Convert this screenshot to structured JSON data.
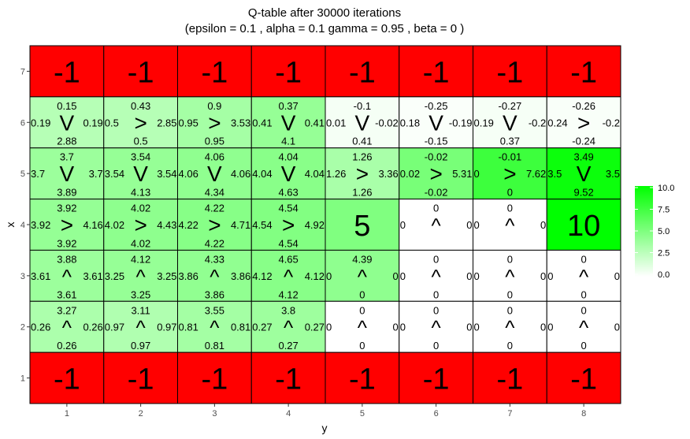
{
  "chart_data": {
    "type": "heatmap",
    "title": "Q-table after  30000  iterations",
    "subtitle": "(epsilon =  0.1 , alpha =  0.1 gamma =  0.95 , beta =  0 )",
    "xlabel": "y",
    "ylabel": "x",
    "x_ticks": [
      "1",
      "2",
      "3",
      "4",
      "5",
      "6",
      "7",
      "8"
    ],
    "y_ticks": [
      "1",
      "2",
      "3",
      "4",
      "5",
      "6",
      "7"
    ],
    "x_range": [
      0.5,
      8.5
    ],
    "y_range": [
      0.5,
      7.5
    ],
    "grid": true,
    "legend": {
      "position": "right",
      "ticks": [
        "0.0",
        "2.5",
        "5.0",
        "7.5",
        "10.0"
      ],
      "min": 0,
      "max": 10,
      "low_color": "#ffffff",
      "high_color": "#00ff00"
    },
    "colors": {
      "penalty": "#ff0000",
      "panel_background": "#ebebeb",
      "grid": "#ffffff"
    },
    "cells": [
      {
        "y": 1,
        "x": 7,
        "kind": "value",
        "label": "-1"
      },
      {
        "y": 2,
        "x": 7,
        "kind": "value",
        "label": "-1"
      },
      {
        "y": 3,
        "x": 7,
        "kind": "value",
        "label": "-1"
      },
      {
        "y": 4,
        "x": 7,
        "kind": "value",
        "label": "-1"
      },
      {
        "y": 5,
        "x": 7,
        "kind": "value",
        "label": "-1"
      },
      {
        "y": 6,
        "x": 7,
        "kind": "value",
        "label": "-1"
      },
      {
        "y": 7,
        "x": 7,
        "kind": "value",
        "label": "-1"
      },
      {
        "y": 8,
        "x": 7,
        "kind": "value",
        "label": "-1"
      },
      {
        "y": 1,
        "x": 6,
        "kind": "q",
        "up": "0.15",
        "down": "2.88",
        "left": "0.19",
        "right": "0.19",
        "arrow": "V",
        "value": 2.88
      },
      {
        "y": 2,
        "x": 6,
        "kind": "q",
        "up": "0.43",
        "down": "0.5",
        "left": "0.5",
        "right": "2.85",
        "arrow": ">",
        "value": 2.85
      },
      {
        "y": 3,
        "x": 6,
        "kind": "q",
        "up": "0.9",
        "down": "0.95",
        "left": "0.95",
        "right": "3.53",
        "arrow": ">",
        "value": 3.53
      },
      {
        "y": 4,
        "x": 6,
        "kind": "q",
        "up": "0.37",
        "down": "4.1",
        "left": "0.41",
        "right": "0.41",
        "arrow": "V",
        "value": 4.1
      },
      {
        "y": 5,
        "x": 6,
        "kind": "q",
        "up": "-0.1",
        "down": "0.41",
        "left": "0.01",
        "right": "-0.02",
        "arrow": "V",
        "value": 0.41
      },
      {
        "y": 6,
        "x": 6,
        "kind": "q",
        "up": "-0.25",
        "down": "-0.15",
        "left": "0.18",
        "right": "-0.19",
        "arrow": "V",
        "value": 0.18
      },
      {
        "y": 7,
        "x": 6,
        "kind": "q",
        "up": "-0.27",
        "down": "0.37",
        "left": "0.19",
        "right": "-0.2",
        "arrow": "V",
        "value": 0.37
      },
      {
        "y": 8,
        "x": 6,
        "kind": "q",
        "up": "-0.26",
        "down": "-0.24",
        "left": "0.24",
        "right": "-0.2",
        "arrow": ">",
        "value": 0.24
      },
      {
        "y": 1,
        "x": 5,
        "kind": "q",
        "up": "3.7",
        "down": "3.89",
        "left": "3.7",
        "right": "3.7",
        "arrow": "V",
        "value": 3.89
      },
      {
        "y": 2,
        "x": 5,
        "kind": "q",
        "up": "3.54",
        "down": "4.13",
        "left": "3.54",
        "right": "3.54",
        "arrow": "V",
        "value": 4.13
      },
      {
        "y": 3,
        "x": 5,
        "kind": "q",
        "up": "4.06",
        "down": "4.34",
        "left": "4.06",
        "right": "4.06",
        "arrow": "V",
        "value": 4.34
      },
      {
        "y": 4,
        "x": 5,
        "kind": "q",
        "up": "4.04",
        "down": "4.63",
        "left": "4.04",
        "right": "4.04",
        "arrow": "V",
        "value": 4.63
      },
      {
        "y": 5,
        "x": 5,
        "kind": "q",
        "up": "1.26",
        "down": "1.26",
        "left": "1.26",
        "right": "3.36",
        "arrow": ">",
        "value": 3.36
      },
      {
        "y": 6,
        "x": 5,
        "kind": "q",
        "up": "-0.02",
        "down": "-0.02",
        "left": "0.02",
        "right": "5.31",
        "arrow": ">",
        "value": 5.31
      },
      {
        "y": 7,
        "x": 5,
        "kind": "q",
        "up": "-0.01",
        "down": "0",
        "left": "0",
        "right": "7.62",
        "arrow": ">",
        "value": 7.62
      },
      {
        "y": 8,
        "x": 5,
        "kind": "q",
        "up": "3.49",
        "down": "9.52",
        "left": "3.5",
        "right": "3.5",
        "arrow": "V",
        "value": 9.52
      },
      {
        "y": 1,
        "x": 4,
        "kind": "q",
        "up": "3.92",
        "down": "3.92",
        "left": "3.92",
        "right": "4.16",
        "arrow": ">",
        "value": 4.16
      },
      {
        "y": 2,
        "x": 4,
        "kind": "q",
        "up": "4.02",
        "down": "4.02",
        "left": "4.02",
        "right": "4.43",
        "arrow": ">",
        "value": 4.43
      },
      {
        "y": 3,
        "x": 4,
        "kind": "q",
        "up": "4.22",
        "down": "4.22",
        "left": "4.22",
        "right": "4.71",
        "arrow": ">",
        "value": 4.71
      },
      {
        "y": 4,
        "x": 4,
        "kind": "q",
        "up": "4.54",
        "down": "4.54",
        "left": "4.54",
        "right": "4.92",
        "arrow": ">",
        "value": 4.92
      },
      {
        "y": 5,
        "x": 4,
        "kind": "value",
        "label": "5",
        "value": 5
      },
      {
        "y": 6,
        "x": 4,
        "kind": "q",
        "up": "0",
        "down": "",
        "left": "0",
        "right": "0",
        "arrow": "^",
        "value": 0
      },
      {
        "y": 7,
        "x": 4,
        "kind": "q",
        "up": "0",
        "down": "",
        "left": "0",
        "right": "0",
        "arrow": "^",
        "value": 0
      },
      {
        "y": 8,
        "x": 4,
        "kind": "value",
        "label": "10",
        "value": 10
      },
      {
        "y": 1,
        "x": 3,
        "kind": "q",
        "up": "3.88",
        "down": "3.61",
        "left": "3.61",
        "right": "3.61",
        "arrow": "^",
        "value": 3.88
      },
      {
        "y": 2,
        "x": 3,
        "kind": "q",
        "up": "4.12",
        "down": "3.25",
        "left": "3.25",
        "right": "3.25",
        "arrow": "^",
        "value": 4.12
      },
      {
        "y": 3,
        "x": 3,
        "kind": "q",
        "up": "4.33",
        "down": "3.86",
        "left": "3.86",
        "right": "3.86",
        "arrow": "^",
        "value": 4.33
      },
      {
        "y": 4,
        "x": 3,
        "kind": "q",
        "up": "4.65",
        "down": "4.12",
        "left": "4.12",
        "right": "4.12",
        "arrow": "^",
        "value": 4.65
      },
      {
        "y": 5,
        "x": 3,
        "kind": "q",
        "up": "4.39",
        "down": "0",
        "left": "0",
        "right": "0",
        "arrow": "^",
        "value": 4.39
      },
      {
        "y": 6,
        "x": 3,
        "kind": "q",
        "up": "0",
        "down": "0",
        "left": "0",
        "right": "0",
        "arrow": "^",
        "value": 0
      },
      {
        "y": 7,
        "x": 3,
        "kind": "q",
        "up": "0",
        "down": "0",
        "left": "0",
        "right": "0",
        "arrow": "^",
        "value": 0
      },
      {
        "y": 8,
        "x": 3,
        "kind": "q",
        "up": "0",
        "down": "0",
        "left": "0",
        "right": "0",
        "arrow": "^",
        "value": 0
      },
      {
        "y": 1,
        "x": 2,
        "kind": "q",
        "up": "3.27",
        "down": "0.26",
        "left": "0.26",
        "right": "0.26",
        "arrow": "^",
        "value": 3.27
      },
      {
        "y": 2,
        "x": 2,
        "kind": "q",
        "up": "3.11",
        "down": "0.97",
        "left": "0.97",
        "right": "0.97",
        "arrow": "^",
        "value": 3.11
      },
      {
        "y": 3,
        "x": 2,
        "kind": "q",
        "up": "3.55",
        "down": "0.81",
        "left": "0.81",
        "right": "0.81",
        "arrow": "^",
        "value": 3.55
      },
      {
        "y": 4,
        "x": 2,
        "kind": "q",
        "up": "3.8",
        "down": "0.27",
        "left": "0.27",
        "right": "0.27",
        "arrow": "^",
        "value": 3.8
      },
      {
        "y": 5,
        "x": 2,
        "kind": "q",
        "up": "0",
        "down": "0",
        "left": "0",
        "right": "0",
        "arrow": "^",
        "value": 0
      },
      {
        "y": 6,
        "x": 2,
        "kind": "q",
        "up": "0",
        "down": "0",
        "left": "0",
        "right": "0",
        "arrow": "^",
        "value": 0
      },
      {
        "y": 7,
        "x": 2,
        "kind": "q",
        "up": "0",
        "down": "0",
        "left": "0",
        "right": "0",
        "arrow": "^",
        "value": 0
      },
      {
        "y": 8,
        "x": 2,
        "kind": "q",
        "up": "0",
        "down": "0",
        "left": "0",
        "right": "0",
        "arrow": "^",
        "value": 0
      },
      {
        "y": 1,
        "x": 1,
        "kind": "value",
        "label": "-1"
      },
      {
        "y": 2,
        "x": 1,
        "kind": "value",
        "label": "-1"
      },
      {
        "y": 3,
        "x": 1,
        "kind": "value",
        "label": "-1"
      },
      {
        "y": 4,
        "x": 1,
        "kind": "value",
        "label": "-1"
      },
      {
        "y": 5,
        "x": 1,
        "kind": "value",
        "label": "-1"
      },
      {
        "y": 6,
        "x": 1,
        "kind": "value",
        "label": "-1"
      },
      {
        "y": 7,
        "x": 1,
        "kind": "value",
        "label": "-1"
      },
      {
        "y": 8,
        "x": 1,
        "kind": "value",
        "label": "-1"
      }
    ]
  }
}
